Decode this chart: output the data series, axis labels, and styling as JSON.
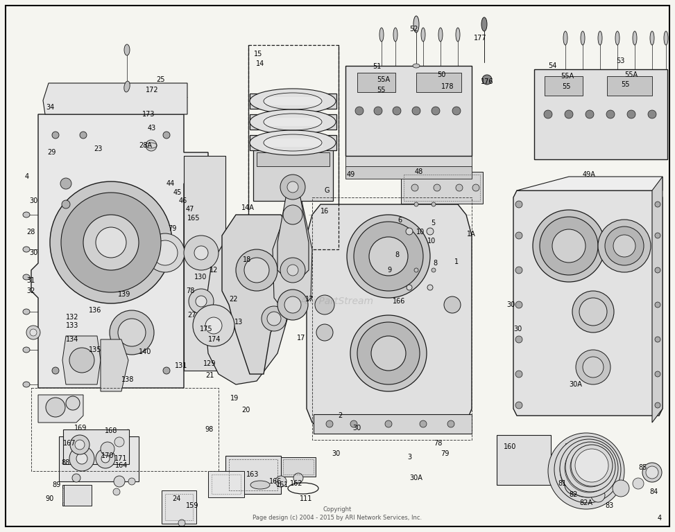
{
  "background_color": "#f5f5f0",
  "border_color": "#000000",
  "copyright_line1": "Copyright",
  "copyright_line2": "Page design (c) 2004 - 2015 by ARI Network Services, Inc.",
  "watermark": "ARi PartStream",
  "fig_width": 9.73,
  "fig_height": 7.68,
  "dpi": 100,
  "line_color": "#1a1a1a",
  "text_color": "#000000"
}
